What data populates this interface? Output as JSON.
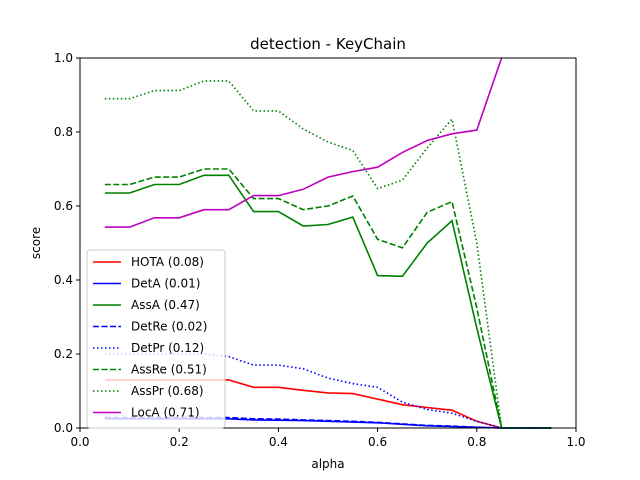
{
  "chart_data": {
    "type": "line",
    "title": "detection - KeyChain",
    "xlabel": "alpha",
    "ylabel": "score",
    "xlim": [
      0.0,
      1.0
    ],
    "ylim": [
      0.0,
      1.0
    ],
    "xticks": [
      "0.0",
      "0.2",
      "0.4",
      "0.6",
      "0.8",
      "1.0"
    ],
    "yticks": [
      "0.0",
      "0.2",
      "0.4",
      "0.6",
      "0.8",
      "1.0"
    ],
    "grid": false,
    "legend_position": "lower-left",
    "x": [
      0.05,
      0.1,
      0.15,
      0.2,
      0.25,
      0.3,
      0.35,
      0.4,
      0.45,
      0.5,
      0.55,
      0.6,
      0.65,
      0.7,
      0.75,
      0.8,
      0.85,
      0.9,
      0.95
    ],
    "series": [
      {
        "name": "HOTA (0.08)",
        "color": "#ff0000",
        "dash": "solid",
        "values": [
          0.13,
          0.13,
          0.13,
          0.13,
          0.13,
          0.13,
          0.11,
          0.11,
          0.102,
          0.095,
          0.093,
          0.078,
          0.063,
          0.055,
          0.048,
          0.018,
          0.0,
          0.0,
          0.0
        ]
      },
      {
        "name": "DetA (0.01)",
        "color": "#0000ff",
        "dash": "solid",
        "values": [
          0.025,
          0.025,
          0.025,
          0.025,
          0.025,
          0.025,
          0.022,
          0.021,
          0.02,
          0.018,
          0.016,
          0.014,
          0.01,
          0.006,
          0.004,
          0.002,
          0.0,
          0.0,
          0.0
        ]
      },
      {
        "name": "AssA (0.47)",
        "color": "#008000",
        "dash": "solid",
        "values": [
          0.635,
          0.635,
          0.658,
          0.658,
          0.683,
          0.683,
          0.585,
          0.585,
          0.546,
          0.55,
          0.57,
          0.412,
          0.41,
          0.5,
          0.56,
          0.27,
          0.0,
          0.0,
          0.0
        ]
      },
      {
        "name": "DetRe (0.02)",
        "color": "#0000ff",
        "dash": "dashed",
        "values": [
          0.028,
          0.028,
          0.028,
          0.028,
          0.028,
          0.028,
          0.025,
          0.024,
          0.022,
          0.02,
          0.018,
          0.015,
          0.011,
          0.007,
          0.005,
          0.002,
          0.0,
          0.0,
          0.0
        ]
      },
      {
        "name": "DetPr (0.12)",
        "color": "#0000ff",
        "dash": "dotted",
        "values": [
          0.2,
          0.2,
          0.2,
          0.2,
          0.2,
          0.193,
          0.17,
          0.17,
          0.16,
          0.135,
          0.12,
          0.11,
          0.07,
          0.05,
          0.04,
          0.018,
          0.0,
          0.0,
          0.0
        ]
      },
      {
        "name": "AssRe (0.51)",
        "color": "#008000",
        "dash": "dashed",
        "values": [
          0.658,
          0.658,
          0.678,
          0.678,
          0.7,
          0.7,
          0.62,
          0.62,
          0.59,
          0.6,
          0.627,
          0.51,
          0.487,
          0.583,
          0.612,
          0.325,
          0.0,
          0.0,
          0.0
        ]
      },
      {
        "name": "AssPr (0.68)",
        "color": "#008000",
        "dash": "dotted",
        "values": [
          0.89,
          0.89,
          0.912,
          0.912,
          0.938,
          0.938,
          0.857,
          0.857,
          0.808,
          0.773,
          0.75,
          0.647,
          0.67,
          0.757,
          0.835,
          0.5,
          0.0,
          0.0,
          0.0
        ]
      },
      {
        "name": "LocA (0.71)",
        "color": "#bf00bf",
        "dash": "solid",
        "values": [
          0.543,
          0.543,
          0.568,
          0.568,
          0.59,
          0.59,
          0.628,
          0.628,
          0.645,
          0.678,
          0.693,
          0.705,
          0.745,
          0.777,
          0.795,
          0.805,
          1.0,
          null,
          null
        ]
      }
    ]
  }
}
